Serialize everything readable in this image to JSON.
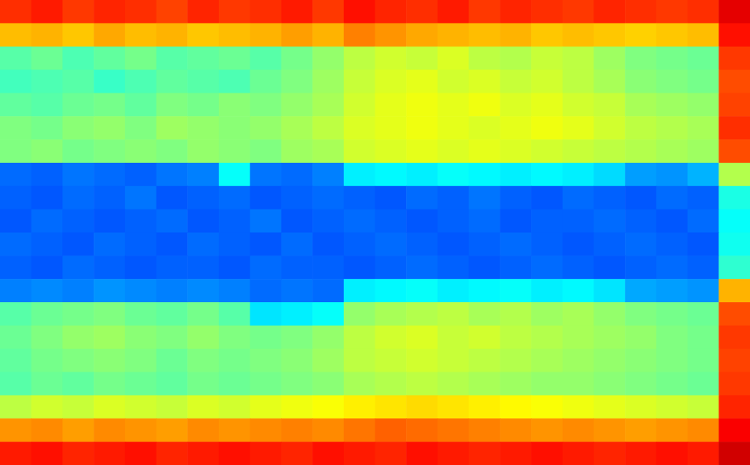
{
  "chart_data": {
    "type": "heatmap",
    "zlim": [
      0,
      10
    ],
    "tick_labels": false,
    "cells": [
      [
        8.3,
        8.5,
        8.2,
        8.4,
        8.3,
        8.1,
        8.4,
        8.2,
        8.3,
        8.5,
        8.2,
        8.6,
        8.4,
        8.3,
        8.5,
        8.2,
        8.4,
        8.3,
        8.2,
        8.4,
        8.3,
        8.2,
        8.3,
        9.0
      ],
      [
        6.9,
        7.0,
        6.8,
        7.1,
        6.9,
        7.0,
        6.8,
        6.9,
        7.0,
        7.2,
        7.0,
        7.5,
        7.3,
        7.1,
        7.0,
        6.9,
        7.0,
        6.8,
        6.9,
        6.8,
        6.7,
        6.8,
        6.9,
        8.6
      ],
      [
        4.6,
        4.8,
        4.5,
        4.7,
        4.9,
        4.6,
        4.7,
        4.8,
        4.6,
        4.9,
        5.2,
        5.6,
        5.8,
        5.7,
        5.9,
        5.6,
        5.5,
        5.7,
        5.6,
        5.3,
        5.0,
        4.9,
        4.8,
        8.2
      ],
      [
        4.4,
        4.5,
        4.6,
        4.3,
        4.5,
        4.7,
        4.6,
        4.5,
        4.8,
        5.0,
        5.3,
        5.7,
        5.9,
        6.0,
        5.8,
        5.9,
        5.7,
        5.8,
        5.6,
        5.4,
        5.1,
        5.0,
        4.9,
        8.0
      ],
      [
        4.7,
        4.6,
        4.8,
        4.9,
        4.7,
        5.0,
        4.9,
        5.1,
        5.0,
        5.2,
        5.4,
        5.8,
        6.0,
        6.1,
        6.0,
        6.1,
        5.9,
        6.0,
        5.8,
        5.7,
        5.4,
        5.3,
        5.2,
        8.1
      ],
      [
        5.0,
        4.9,
        5.1,
        5.2,
        5.0,
        5.3,
        5.2,
        5.1,
        5.2,
        5.4,
        5.6,
        5.9,
        6.0,
        6.1,
        6.0,
        5.9,
        6.0,
        6.1,
        6.0,
        5.8,
        5.6,
        5.5,
        5.4,
        8.3
      ],
      [
        5.0,
        5.1,
        4.9,
        5.0,
        5.1,
        5.0,
        5.2,
        5.1,
        5.0,
        5.3,
        5.4,
        5.8,
        5.9,
        6.0,
        5.9,
        6.0,
        5.9,
        5.8,
        5.7,
        5.6,
        5.5,
        5.4,
        5.3,
        8.0
      ],
      [
        2.3,
        2.2,
        2.4,
        2.3,
        2.2,
        2.4,
        2.5,
        3.8,
        2.4,
        2.3,
        2.5,
        3.6,
        3.7,
        3.6,
        3.8,
        3.7,
        3.6,
        3.7,
        3.6,
        3.4,
        2.8,
        2.7,
        3.0,
        5.5
      ],
      [
        2.2,
        2.1,
        2.3,
        2.2,
        2.4,
        2.1,
        2.2,
        2.3,
        2.1,
        2.2,
        2.3,
        2.2,
        2.1,
        2.3,
        2.2,
        2.4,
        2.2,
        2.1,
        2.3,
        2.2,
        2.1,
        2.3,
        2.2,
        4.0
      ],
      [
        2.1,
        2.3,
        2.2,
        2.1,
        2.2,
        2.3,
        2.1,
        2.2,
        2.4,
        2.1,
        2.2,
        2.3,
        2.2,
        2.1,
        2.2,
        2.3,
        2.1,
        2.2,
        2.2,
        2.3,
        2.2,
        2.1,
        2.3,
        3.8
      ],
      [
        2.3,
        2.2,
        2.1,
        2.3,
        2.2,
        2.1,
        2.3,
        2.2,
        2.1,
        2.3,
        2.1,
        2.2,
        2.3,
        2.2,
        2.1,
        2.2,
        2.3,
        2.2,
        2.1,
        2.2,
        2.3,
        2.2,
        2.1,
        3.9
      ],
      [
        2.2,
        2.1,
        2.3,
        2.2,
        2.1,
        2.2,
        2.2,
        2.1,
        2.3,
        2.2,
        2.2,
        2.1,
        2.2,
        2.3,
        2.2,
        2.1,
        2.2,
        2.3,
        2.2,
        2.1,
        2.2,
        2.3,
        2.2,
        4.2
      ],
      [
        2.5,
        2.6,
        2.5,
        2.7,
        2.6,
        2.5,
        2.6,
        2.5,
        2.3,
        2.4,
        2.3,
        3.6,
        3.7,
        3.8,
        3.6,
        3.7,
        3.8,
        3.6,
        3.7,
        3.5,
        2.9,
        2.8,
        2.7,
        7.0
      ],
      [
        4.6,
        4.8,
        4.9,
        5.0,
        4.8,
        4.7,
        4.9,
        4.6,
        3.5,
        3.6,
        3.8,
        5.2,
        5.4,
        5.5,
        5.6,
        5.4,
        5.5,
        5.3,
        5.4,
        5.2,
        5.0,
        4.9,
        4.8,
        8.0
      ],
      [
        4.8,
        5.0,
        5.2,
        5.3,
        5.1,
        5.0,
        5.2,
        5.0,
        4.9,
        5.0,
        5.2,
        5.6,
        5.8,
        5.9,
        5.7,
        5.8,
        5.6,
        5.5,
        5.4,
        5.3,
        5.2,
        5.0,
        4.9,
        8.2
      ],
      [
        4.7,
        4.9,
        5.0,
        5.1,
        5.0,
        4.8,
        5.0,
        4.9,
        5.0,
        5.1,
        5.3,
        5.6,
        5.7,
        5.8,
        5.7,
        5.6,
        5.5,
        5.4,
        5.3,
        5.2,
        5.1,
        5.0,
        4.9,
        8.1
      ],
      [
        4.6,
        4.8,
        4.7,
        4.9,
        4.8,
        4.7,
        4.9,
        4.8,
        4.9,
        5.0,
        5.1,
        5.4,
        5.5,
        5.6,
        5.5,
        5.4,
        5.3,
        5.2,
        5.2,
        5.1,
        5.0,
        4.9,
        4.8,
        8.2
      ],
      [
        5.6,
        5.8,
        5.7,
        5.9,
        5.8,
        5.7,
        5.9,
        5.8,
        6.0,
        6.1,
        6.2,
        6.4,
        6.5,
        6.6,
        6.5,
        6.4,
        6.3,
        6.2,
        6.1,
        6.0,
        5.9,
        5.8,
        5.7,
        8.4
      ],
      [
        7.3,
        7.4,
        7.2,
        7.4,
        7.3,
        7.2,
        7.4,
        7.3,
        7.4,
        7.5,
        7.4,
        7.6,
        7.8,
        7.7,
        7.6,
        7.5,
        7.4,
        7.3,
        7.4,
        7.3,
        7.2,
        7.3,
        7.4,
        8.8
      ],
      [
        8.5,
        8.6,
        8.4,
        8.5,
        8.6,
        8.4,
        8.5,
        8.6,
        8.5,
        8.4,
        8.6,
        8.5,
        8.4,
        8.6,
        8.5,
        8.4,
        8.5,
        8.6,
        8.5,
        8.4,
        8.5,
        8.6,
        8.5,
        9.2
      ]
    ]
  }
}
